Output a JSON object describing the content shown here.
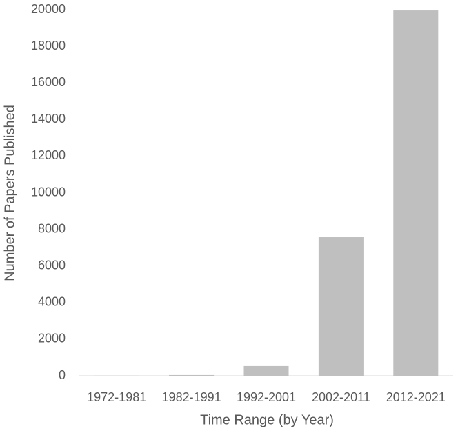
{
  "chart_data": {
    "type": "bar",
    "x_label": "Time Range (by Year)",
    "y_label": "Number of Papers Published",
    "categories": [
      "1972-1981",
      "1982-1991",
      "1992-2001",
      "2002-2011",
      "2012-2021"
    ],
    "values": [
      5,
      40,
      530,
      7570,
      19960
    ],
    "color": "#bfbfbf",
    "ylim": [
      0,
      20000
    ],
    "yticks": [
      0,
      2000,
      4000,
      6000,
      8000,
      10000,
      12000,
      14000,
      16000,
      18000,
      20000
    ],
    "grid": false
  }
}
